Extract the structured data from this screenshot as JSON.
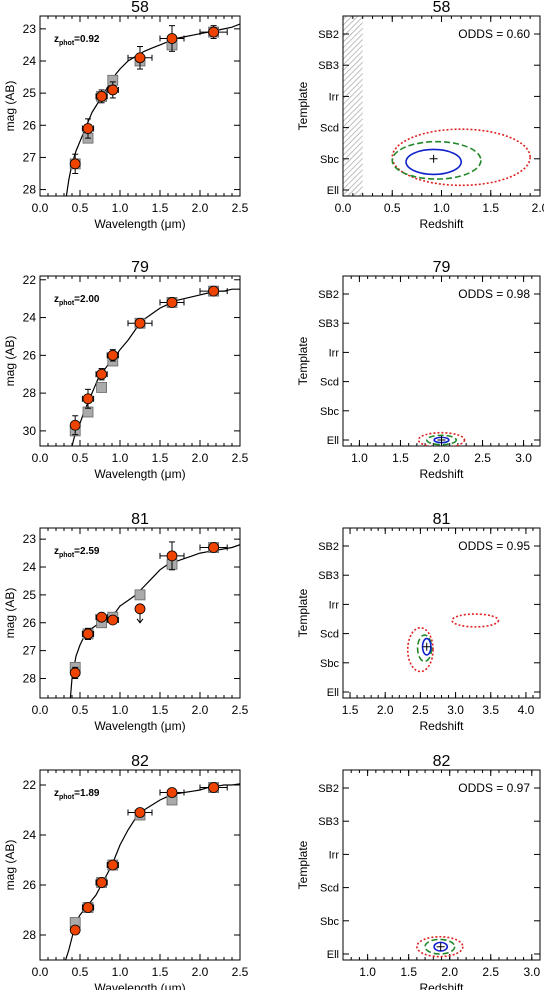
{
  "chart_data": [
    {
      "type": "scatter",
      "title": "58",
      "xlabel": "Wavelength (μm)",
      "ylabel": "mag (AB)",
      "xlim": [
        0.0,
        2.5
      ],
      "ylim": [
        28.2,
        22.6
      ],
      "xticks": [
        "0.0",
        "0.5",
        "1.0",
        "1.5",
        "2.0",
        "2.5"
      ],
      "yticks": [
        23,
        24,
        25,
        26,
        27,
        28
      ],
      "annotation": {
        "label": "z",
        "sub": "phot",
        "value": "=0.92"
      },
      "series": [
        {
          "role": "model-template",
          "x": [
            0.33,
            0.36,
            0.4,
            0.45,
            0.5,
            0.55,
            0.6,
            0.65,
            0.7,
            0.75,
            0.8,
            0.85,
            0.9,
            0.95,
            1.0,
            1.1,
            1.2,
            1.3,
            1.4,
            1.5,
            1.6,
            1.7,
            1.8,
            1.9,
            2.0,
            2.1,
            2.2,
            2.3,
            2.4,
            2.5
          ],
          "y": [
            28.2,
            27.7,
            27.2,
            26.8,
            26.5,
            26.2,
            25.9,
            25.6,
            25.4,
            25.2,
            25.0,
            24.8,
            24.6,
            24.4,
            24.25,
            24.0,
            23.85,
            23.7,
            23.6,
            23.5,
            23.4,
            23.3,
            23.25,
            23.2,
            23.15,
            23.1,
            23.05,
            23.0,
            22.95,
            22.85
          ]
        },
        {
          "role": "model-flux",
          "x": [
            0.44,
            0.6,
            0.77,
            0.91,
            1.25,
            1.65,
            2.17
          ],
          "y": [
            27.2,
            26.4,
            25.1,
            24.6,
            24.0,
            23.5,
            23.1
          ]
        },
        {
          "role": "observed",
          "x": [
            0.44,
            0.6,
            0.77,
            0.91,
            1.25,
            1.65,
            2.17
          ],
          "y": [
            27.2,
            26.1,
            25.1,
            24.9,
            23.9,
            23.3,
            23.1
          ],
          "xerr": [
            0.05,
            0.07,
            0.07,
            0.07,
            0.15,
            0.15,
            0.17
          ],
          "yerr": [
            0.3,
            0.3,
            0.2,
            0.25,
            0.35,
            0.4,
            0.2
          ]
        }
      ]
    },
    {
      "type": "contour",
      "title": "58",
      "xlabel": "Redshift",
      "ylabel": "Template",
      "xlim": [
        0.0,
        2.0
      ],
      "xticks": [
        "0.0",
        "0.5",
        "1.0",
        "1.5",
        "2.0"
      ],
      "yticks": [
        "SB2",
        "SB3",
        "Irr",
        "Scd",
        "Sbc",
        "Ell"
      ],
      "odds": "ODDS = 0.60",
      "hatched_xrange": [
        0.0,
        0.2
      ],
      "best_fit": {
        "z": 0.92,
        "t": 1.0
      },
      "contours": [
        {
          "level": "outer",
          "color": "#dd2222",
          "style": "dotted",
          "center": [
            1.2,
            1.05
          ],
          "radius": [
            0.7,
            0.9
          ]
        },
        {
          "level": "middle",
          "color": "#22882a",
          "style": "dashed",
          "center": [
            0.95,
            0.95
          ],
          "radius": [
            0.45,
            0.6
          ]
        },
        {
          "level": "inner",
          "color": "#1122cc",
          "style": "solid",
          "center": [
            0.92,
            0.9
          ],
          "radius": [
            0.28,
            0.4
          ]
        }
      ]
    },
    {
      "type": "scatter",
      "title": "79",
      "xlabel": "Wavelength (μm)",
      "ylabel": "mag (AB)",
      "xlim": [
        0.0,
        2.5
      ],
      "ylim": [
        30.8,
        21.8
      ],
      "xticks": [
        "0.0",
        "0.5",
        "1.0",
        "1.5",
        "2.0",
        "2.5"
      ],
      "yticks": [
        22,
        24,
        26,
        28,
        30
      ],
      "annotation": {
        "label": "z",
        "sub": "phot",
        "value": "=2.00"
      },
      "series": [
        {
          "role": "model-template",
          "x": [
            0.4,
            0.45,
            0.5,
            0.55,
            0.6,
            0.65,
            0.7,
            0.75,
            0.8,
            0.85,
            0.9,
            0.95,
            1.0,
            1.1,
            1.2,
            1.3,
            1.4,
            1.5,
            1.6,
            1.7,
            1.8,
            1.9,
            2.0,
            2.1,
            2.2,
            2.3,
            2.4,
            2.5
          ],
          "y": [
            30.8,
            30.0,
            29.6,
            29.0,
            28.5,
            28.0,
            27.5,
            27.0,
            26.8,
            26.5,
            26.2,
            26.0,
            25.7,
            25.2,
            24.6,
            24.1,
            23.8,
            23.5,
            23.3,
            23.1,
            23.0,
            22.9,
            22.8,
            22.7,
            22.6,
            22.6,
            22.5,
            22.5
          ]
        },
        {
          "role": "model-flux",
          "x": [
            0.44,
            0.6,
            0.77,
            0.91,
            1.25,
            1.65,
            2.17
          ],
          "y": [
            30.0,
            29.0,
            27.7,
            26.3,
            24.3,
            23.2,
            22.6
          ]
        },
        {
          "role": "observed",
          "x": [
            0.44,
            0.6,
            0.77,
            0.91,
            1.25,
            1.65,
            2.17
          ],
          "y": [
            29.7,
            28.3,
            27.0,
            26.0,
            24.3,
            23.2,
            22.6
          ],
          "xerr": [
            0.05,
            0.07,
            0.07,
            0.07,
            0.15,
            0.15,
            0.17
          ],
          "yerr": [
            0.5,
            0.5,
            0.3,
            0.3,
            0.2,
            0.2,
            0.2
          ]
        }
      ]
    },
    {
      "type": "contour",
      "title": "79",
      "xlabel": "Redshift",
      "ylabel": "Template",
      "xlim": [
        0.8,
        3.2
      ],
      "xticks": [
        "1.0",
        "1.5",
        "2.0",
        "2.5",
        "3.0"
      ],
      "yticks": [
        "SB2",
        "SB3",
        "Irr",
        "Scd",
        "Sbc",
        "Ell"
      ],
      "odds": "ODDS = 0.98",
      "best_fit": {
        "z": 2.0,
        "t": 0.0
      },
      "contours": [
        {
          "level": "outer",
          "color": "#dd2222",
          "style": "dotted",
          "center": [
            2.0,
            0.0
          ],
          "radius": [
            0.28,
            0.25
          ]
        },
        {
          "level": "middle",
          "color": "#22882a",
          "style": "dashed",
          "center": [
            2.0,
            0.0
          ],
          "radius": [
            0.18,
            0.16
          ]
        },
        {
          "level": "inner",
          "color": "#1122cc",
          "style": "solid",
          "center": [
            2.0,
            0.0
          ],
          "radius": [
            0.09,
            0.09
          ]
        }
      ]
    },
    {
      "type": "scatter",
      "title": "81",
      "xlabel": "Wavelength (μm)",
      "ylabel": "mag (AB)",
      "xlim": [
        0.0,
        2.5
      ],
      "ylim": [
        28.7,
        22.6
      ],
      "xticks": [
        "0.0",
        "0.5",
        "1.0",
        "1.5",
        "2.0",
        "2.5"
      ],
      "yticks": [
        23,
        24,
        25,
        26,
        27,
        28
      ],
      "annotation": {
        "label": "z",
        "sub": "phot",
        "value": "=2.59"
      },
      "series": [
        {
          "role": "model-template",
          "x": [
            0.38,
            0.4,
            0.45,
            0.5,
            0.55,
            0.6,
            0.65,
            0.7,
            0.75,
            0.8,
            0.85,
            0.9,
            0.95,
            1.0,
            1.1,
            1.2,
            1.3,
            1.4,
            1.5,
            1.6,
            1.7,
            1.8,
            1.9,
            2.0,
            2.1,
            2.2,
            2.3,
            2.4,
            2.5
          ],
          "y": [
            28.7,
            28.0,
            27.2,
            26.8,
            26.5,
            26.3,
            26.2,
            26.1,
            26.0,
            25.9,
            25.8,
            25.7,
            25.6,
            25.4,
            25.2,
            25.0,
            24.7,
            24.4,
            24.1,
            23.9,
            23.8,
            23.7,
            23.6,
            23.5,
            23.45,
            23.4,
            23.35,
            23.3,
            23.2
          ]
        },
        {
          "role": "model-flux",
          "x": [
            0.44,
            0.6,
            0.77,
            0.91,
            1.25,
            1.65,
            2.17
          ],
          "y": [
            27.6,
            26.4,
            26.0,
            25.8,
            25.0,
            23.9,
            23.3
          ]
        },
        {
          "role": "observed",
          "x": [
            0.44,
            0.6,
            0.77,
            0.91,
            1.25,
            1.65,
            2.17
          ],
          "y": [
            27.8,
            26.4,
            25.8,
            25.9,
            25.5,
            23.6,
            23.3
          ],
          "xerr": [
            0.05,
            0.07,
            0.07,
            0.07,
            0.0,
            0.15,
            0.17
          ],
          "yerr": [
            0.2,
            0.2,
            0.1,
            0.1,
            0.0,
            0.5,
            0.1
          ],
          "upper_limit": [
            false,
            false,
            false,
            false,
            true,
            false,
            false
          ]
        }
      ]
    },
    {
      "type": "contour",
      "title": "81",
      "xlabel": "Redshift",
      "ylabel": "Template",
      "xlim": [
        1.4,
        4.2
      ],
      "xticks": [
        "1.5",
        "2.0",
        "2.5",
        "3.0",
        "3.5",
        "4.0"
      ],
      "yticks": [
        "SB2",
        "SB3",
        "Irr",
        "Scd",
        "Sbc",
        "Ell"
      ],
      "odds": "ODDS = 0.95",
      "best_fit": {
        "z": 2.59,
        "t": 1.55
      },
      "contours": [
        {
          "level": "outer",
          "color": "#dd2222",
          "style": "dotted",
          "center": [
            2.5,
            1.45
          ],
          "radius": [
            0.18,
            0.75
          ]
        },
        {
          "level": "outer",
          "color": "#dd2222",
          "style": "dotted",
          "center": [
            3.28,
            2.45
          ],
          "radius": [
            0.33,
            0.22
          ]
        },
        {
          "level": "middle",
          "color": "#22882a",
          "style": "dashed",
          "center": [
            2.56,
            1.5
          ],
          "radius": [
            0.1,
            0.45
          ]
        },
        {
          "level": "inner",
          "color": "#1122cc",
          "style": "solid",
          "center": [
            2.59,
            1.55
          ],
          "radius": [
            0.06,
            0.28
          ]
        }
      ]
    },
    {
      "type": "scatter",
      "title": "82",
      "xlabel": "Wavelength (μm)",
      "ylabel": "mag (AB)",
      "xlim": [
        0.0,
        2.5
      ],
      "ylim": [
        29.0,
        21.4
      ],
      "xticks": [
        "0.0",
        "0.5",
        "1.0",
        "1.5",
        "2.0",
        "2.5"
      ],
      "yticks": [
        22,
        24,
        26,
        28
      ],
      "annotation": {
        "label": "z",
        "sub": "phot",
        "value": "=1.89"
      },
      "series": [
        {
          "role": "model-template",
          "x": [
            0.32,
            0.36,
            0.4,
            0.45,
            0.5,
            0.55,
            0.6,
            0.65,
            0.7,
            0.75,
            0.8,
            0.85,
            0.9,
            0.95,
            1.0,
            1.1,
            1.2,
            1.3,
            1.4,
            1.5,
            1.6,
            1.7,
            1.8,
            1.9,
            2.0,
            2.1,
            2.2,
            2.3,
            2.4,
            2.5
          ],
          "y": [
            29.0,
            28.6,
            28.1,
            27.5,
            27.2,
            27.0,
            26.8,
            26.6,
            26.4,
            26.1,
            25.8,
            25.5,
            25.2,
            24.8,
            24.4,
            23.8,
            23.3,
            23.0,
            22.8,
            22.6,
            22.45,
            22.35,
            22.3,
            22.25,
            22.2,
            22.1,
            22.05,
            22.0,
            22.0,
            21.95
          ]
        },
        {
          "role": "model-flux",
          "x": [
            0.44,
            0.6,
            0.77,
            0.91,
            1.25,
            1.65,
            2.17
          ],
          "y": [
            27.5,
            26.9,
            25.9,
            25.2,
            23.2,
            22.6,
            22.1
          ]
        },
        {
          "role": "observed",
          "x": [
            0.44,
            0.6,
            0.77,
            0.91,
            1.25,
            1.65,
            2.17
          ],
          "y": [
            27.8,
            26.9,
            25.9,
            25.2,
            23.1,
            22.3,
            22.1
          ],
          "xerr": [
            0.05,
            0.07,
            0.07,
            0.07,
            0.15,
            0.15,
            0.17
          ],
          "yerr": [
            0.15,
            0.15,
            0.1,
            0.1,
            0.15,
            0.1,
            0.1
          ]
        }
      ]
    },
    {
      "type": "contour",
      "title": "82",
      "xlabel": "Redshift",
      "ylabel": "Template",
      "xlim": [
        0.7,
        3.1
      ],
      "xticks": [
        "1.0",
        "1.5",
        "2.0",
        "2.5",
        "3.0"
      ],
      "yticks": [
        "SB2",
        "SB3",
        "Irr",
        "Scd",
        "Sbc",
        "Ell"
      ],
      "odds": "ODDS = 0.97",
      "best_fit": {
        "z": 1.89,
        "t": 0.22
      },
      "contours": [
        {
          "level": "outer",
          "color": "#dd2222",
          "style": "dotted",
          "center": [
            1.88,
            0.22
          ],
          "radius": [
            0.28,
            0.3
          ]
        },
        {
          "level": "middle",
          "color": "#22882a",
          "style": "dashed",
          "center": [
            1.88,
            0.22
          ],
          "radius": [
            0.18,
            0.22
          ]
        },
        {
          "level": "inner",
          "color": "#1122cc",
          "style": "solid",
          "center": [
            1.89,
            0.22
          ],
          "radius": [
            0.08,
            0.13
          ]
        }
      ]
    }
  ],
  "colors": {
    "observed_point": "#ee4400",
    "model_point": "#aaaaaa",
    "hatch": "#aaaaaa",
    "axis": "#000000"
  }
}
